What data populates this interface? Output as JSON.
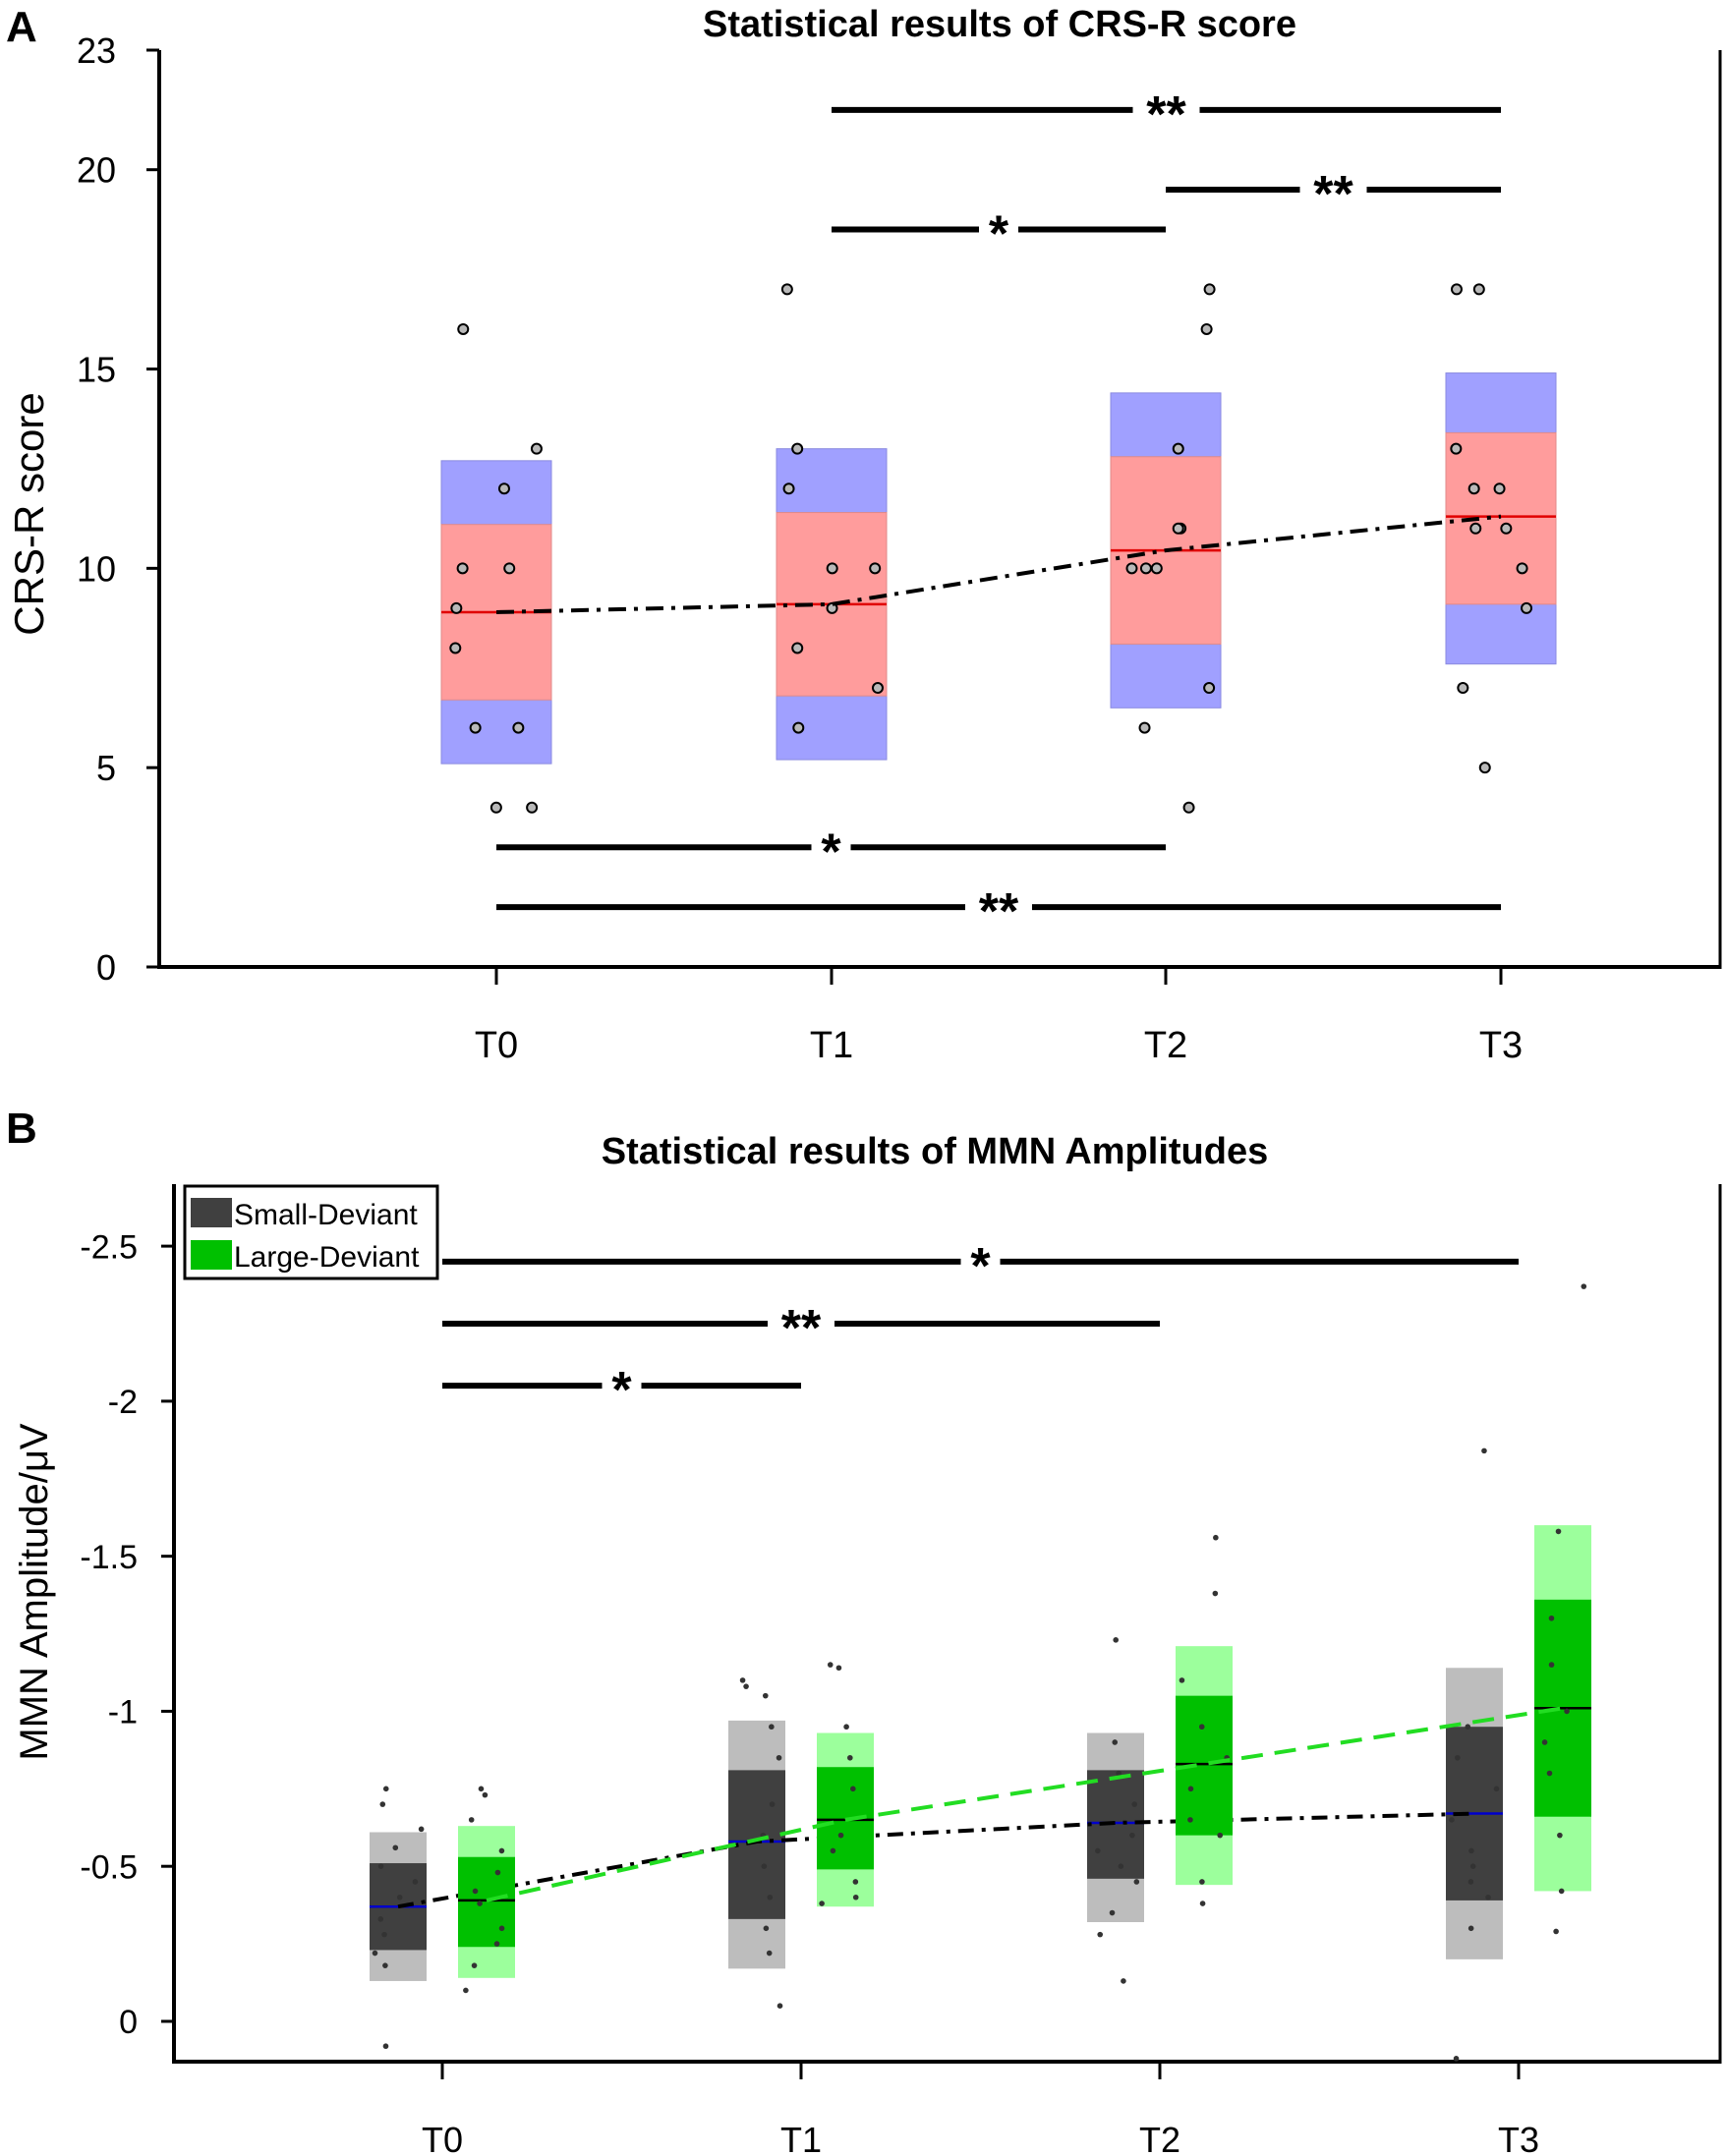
{
  "colors": {
    "outer": "#a0a0ff",
    "inner": "#ff9c9c",
    "median": "#e00000",
    "point": "#b9b9b9",
    "small_outer": "#bdbdbd",
    "small_inner": "#404040",
    "large_outer": "#9cff9c",
    "large_inner": "#00c000",
    "trend_small": "#000000",
    "trend_large": "#22dd22",
    "median_small": "#0000cc"
  },
  "chart_data": [
    {
      "panel_label": "A",
      "type": "box",
      "title": "Statistical results of CRS-R score",
      "ylabel": "CRS-R score",
      "xlabel": "",
      "ylim": [
        0,
        23
      ],
      "yticks": [
        {
          "value": 0,
          "label": "0"
        },
        {
          "value": 5,
          "label": "5"
        },
        {
          "value": 10,
          "label": "10"
        },
        {
          "value": 15,
          "label": "15"
        },
        {
          "value": 20,
          "label": "20"
        },
        {
          "value": 23,
          "label": "23"
        }
      ],
      "categories": [
        "T0",
        "T1",
        "T2",
        "T3"
      ],
      "series": [
        {
          "name": "CRS-R",
          "boxes": [
            {
              "mean": 8.9,
              "inner": [
                6.7,
                11.1
              ],
              "outer": [
                5.1,
                12.7
              ],
              "points": [
                16,
                13,
                12,
                10,
                10,
                9,
                8,
                6,
                6,
                4,
                4
              ]
            },
            {
              "mean": 9.1,
              "inner": [
                6.8,
                11.4
              ],
              "outer": [
                5.2,
                13.0
              ],
              "points": [
                17,
                13,
                12,
                10,
                10,
                9,
                8,
                7,
                6
              ]
            },
            {
              "mean": 10.45,
              "inner": [
                8.1,
                12.8
              ],
              "outer": [
                6.5,
                14.4
              ],
              "points": [
                17,
                16,
                13,
                11,
                11,
                10,
                10,
                10,
                7,
                6,
                4
              ]
            },
            {
              "mean": 11.3,
              "inner": [
                9.1,
                13.4
              ],
              "outer": [
                7.6,
                14.9
              ],
              "points": [
                17,
                17,
                13,
                12,
                12,
                11,
                11,
                10,
                9,
                7,
                5
              ]
            }
          ]
        }
      ],
      "significance": [
        {
          "from": "T1",
          "to": "T3",
          "y": 21.5,
          "label": "**"
        },
        {
          "from": "T2",
          "to": "T3",
          "y": 19.5,
          "label": "**"
        },
        {
          "from": "T1",
          "to": "T2",
          "y": 18.5,
          "label": "*"
        },
        {
          "from": "T0",
          "to": "T2",
          "y": 3.0,
          "label": "*"
        },
        {
          "from": "T0",
          "to": "T3",
          "y": 1.5,
          "label": "**"
        }
      ]
    },
    {
      "panel_label": "B",
      "type": "box",
      "title": "Statistical results of MMN Amplitudes",
      "ylabel": "MMN Amplitude/μV",
      "xlabel": "",
      "ylim": [
        0.13,
        -2.7
      ],
      "yticks": [
        {
          "value": 0,
          "label": "0"
        },
        {
          "value": -0.5,
          "label": "-0.5"
        },
        {
          "value": -1,
          "label": "-1"
        },
        {
          "value": -1.5,
          "label": "-1.5"
        },
        {
          "value": -2,
          "label": "-2"
        },
        {
          "value": -2.5,
          "label": "-2.5"
        }
      ],
      "categories": [
        "T0",
        "T1",
        "T2",
        "T3"
      ],
      "legend": {
        "position": "top-left",
        "entries": [
          "Small-Deviant",
          "Large-Deviant"
        ]
      },
      "series": [
        {
          "name": "Small-Deviant",
          "boxes": [
            {
              "mean": -0.37,
              "inner": [
                -0.23,
                -0.51
              ],
              "outer": [
                -0.13,
                -0.61
              ],
              "points": [
                -0.75,
                -0.7,
                -0.62,
                -0.56,
                -0.5,
                -0.45,
                -0.4,
                -0.33,
                -0.28,
                -0.22,
                -0.18,
                0.08
              ]
            },
            {
              "mean": -0.58,
              "inner": [
                -0.33,
                -0.81
              ],
              "outer": [
                -0.17,
                -0.97
              ],
              "points": [
                -1.1,
                -1.08,
                -1.05,
                -0.95,
                -0.85,
                -0.7,
                -0.6,
                -0.5,
                -0.4,
                -0.3,
                -0.22,
                -0.05
              ]
            },
            {
              "mean": -0.64,
              "inner": [
                -0.46,
                -0.81
              ],
              "outer": [
                -0.32,
                -0.93
              ],
              "points": [
                -1.23,
                -0.9,
                -0.8,
                -0.7,
                -0.6,
                -0.55,
                -0.5,
                -0.45,
                -0.35,
                -0.28,
                -0.13
              ]
            },
            {
              "mean": -0.67,
              "inner": [
                -0.39,
                -0.95
              ],
              "outer": [
                -0.2,
                -1.14
              ],
              "points": [
                -1.84,
                -0.95,
                -0.85,
                -0.75,
                -0.65,
                -0.55,
                -0.5,
                -0.45,
                -0.4,
                -0.3,
                0.12
              ]
            }
          ]
        },
        {
          "name": "Large-Deviant",
          "boxes": [
            {
              "mean": -0.39,
              "inner": [
                -0.24,
                -0.53
              ],
              "outer": [
                -0.14,
                -0.63
              ],
              "points": [
                -0.75,
                -0.73,
                -0.65,
                -0.55,
                -0.48,
                -0.42,
                -0.38,
                -0.3,
                -0.25,
                -0.18,
                -0.1
              ]
            },
            {
              "mean": -0.65,
              "inner": [
                -0.49,
                -0.82
              ],
              "outer": [
                -0.37,
                -0.93
              ],
              "points": [
                -1.15,
                -1.14,
                -0.95,
                -0.85,
                -0.75,
                -0.6,
                -0.55,
                -0.45,
                -0.4,
                -0.38
              ]
            },
            {
              "mean": -0.83,
              "inner": [
                -0.6,
                -1.05
              ],
              "outer": [
                -0.44,
                -1.21
              ],
              "points": [
                -1.56,
                -1.38,
                -1.1,
                -0.95,
                -0.85,
                -0.75,
                -0.65,
                -0.6,
                -0.45,
                -0.38
              ]
            },
            {
              "mean": -1.01,
              "inner": [
                -0.66,
                -1.36
              ],
              "outer": [
                -0.42,
                -1.6
              ],
              "points": [
                -2.37,
                -1.58,
                -1.3,
                -1.15,
                -1.0,
                -0.9,
                -0.8,
                -0.6,
                -0.42,
                -0.29
              ]
            }
          ]
        }
      ],
      "significance": [
        {
          "from": "T0",
          "to": "T3",
          "y": -2.45,
          "label": "*"
        },
        {
          "from": "T0",
          "to": "T2",
          "y": -2.25,
          "label": "**"
        },
        {
          "from": "T0",
          "to": "T1",
          "y": -2.05,
          "label": "*"
        }
      ]
    }
  ]
}
